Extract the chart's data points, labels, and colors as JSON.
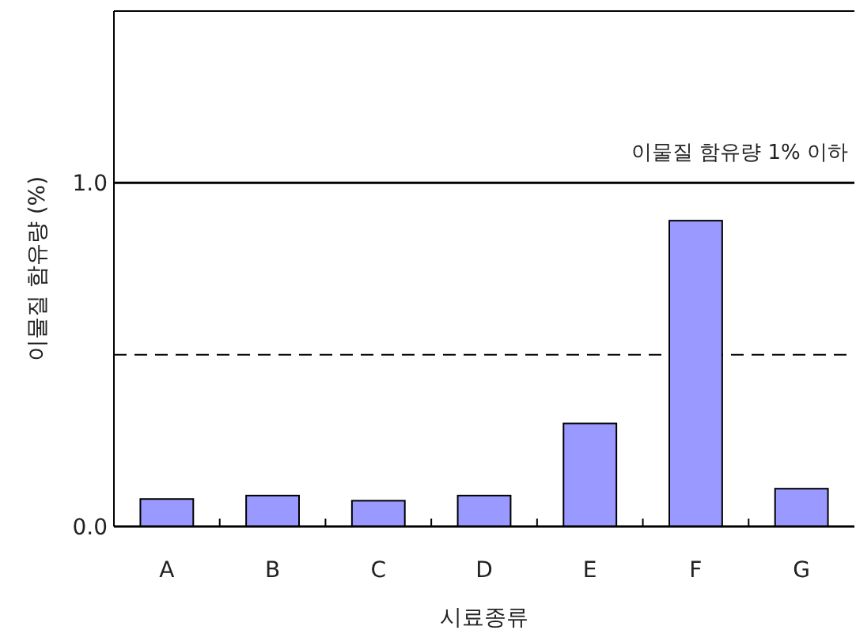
{
  "chart_data": {
    "type": "bar",
    "xlabel": "시료종류",
    "ylabel": "이물질 함유량 (%)",
    "categories": [
      "A",
      "B",
      "C",
      "D",
      "E",
      "F",
      "G"
    ],
    "values": [
      0.08,
      0.09,
      0.075,
      0.09,
      0.3,
      0.89,
      0.11
    ],
    "color": "#9999ff",
    "ylim": [
      0,
      1.5
    ],
    "yticks": [
      {
        "value": 0,
        "label": "0.0"
      },
      {
        "value": 1,
        "label": "1.0"
      }
    ],
    "ref_lines": [
      {
        "axis": "y",
        "value": 1,
        "label": "이물질 함유량 1% 이하",
        "line_style": "solid"
      },
      {
        "axis": "y",
        "value": 0.5,
        "line_style": "dashed"
      }
    ]
  }
}
